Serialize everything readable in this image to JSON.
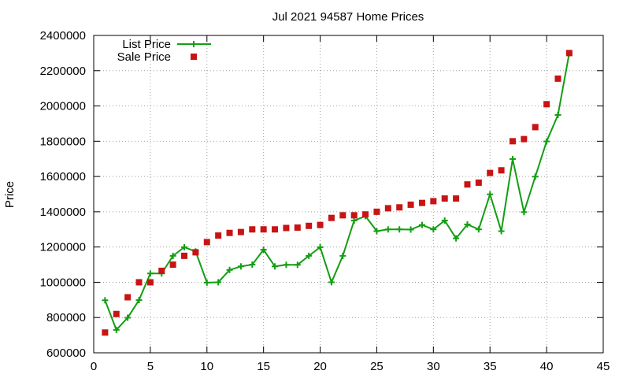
{
  "chart_data": {
    "type": "line",
    "title": "Jul 2021 94587 Home Prices",
    "xlabel": "",
    "ylabel": "Price",
    "xlim": [
      0,
      45
    ],
    "ylim": [
      600000,
      2400000
    ],
    "x_ticks": [
      0,
      5,
      10,
      15,
      20,
      25,
      30,
      35,
      40,
      45
    ],
    "y_ticks": [
      600000,
      800000,
      1000000,
      1200000,
      1400000,
      1600000,
      1800000,
      2000000,
      2200000,
      2400000
    ],
    "grid": true,
    "legend_position": "top-left",
    "x": [
      1,
      2,
      3,
      4,
      5,
      6,
      7,
      8,
      9,
      10,
      11,
      12,
      13,
      14,
      15,
      16,
      17,
      18,
      19,
      20,
      21,
      22,
      23,
      24,
      25,
      26,
      27,
      28,
      29,
      30,
      31,
      32,
      33,
      34,
      35,
      36,
      37,
      38,
      39,
      40,
      41,
      42
    ],
    "series": [
      {
        "name": "List Price",
        "style": "line+cross",
        "color": "#129e12",
        "values": [
          898000,
          730000,
          799000,
          899000,
          1050000,
          1050000,
          1150000,
          1199000,
          1175000,
          998000,
          1000000,
          1070000,
          1090000,
          1100000,
          1185000,
          1090000,
          1099000,
          1099000,
          1150000,
          1199000,
          1000000,
          1150000,
          1350000,
          1375000,
          1290000,
          1300000,
          1300000,
          1299000,
          1325000,
          1300000,
          1350000,
          1249000,
          1328000,
          1300000,
          1499000,
          1290000,
          1699000,
          1398000,
          1599000,
          1799000,
          1949000,
          2299000
        ]
      },
      {
        "name": "Sale Price",
        "style": "square",
        "color": "#c81414",
        "values": [
          715000,
          820000,
          915000,
          1000000,
          1000000,
          1065000,
          1100000,
          1150000,
          1170000,
          1228000,
          1265000,
          1280000,
          1285000,
          1300000,
          1300000,
          1300000,
          1308000,
          1310000,
          1320000,
          1325000,
          1365000,
          1380000,
          1380000,
          1385000,
          1400000,
          1420000,
          1425000,
          1440000,
          1450000,
          1460000,
          1475000,
          1475000,
          1555000,
          1565000,
          1620000,
          1635000,
          1800000,
          1812000,
          1880000,
          2010000,
          2155000,
          2300000
        ]
      }
    ]
  }
}
